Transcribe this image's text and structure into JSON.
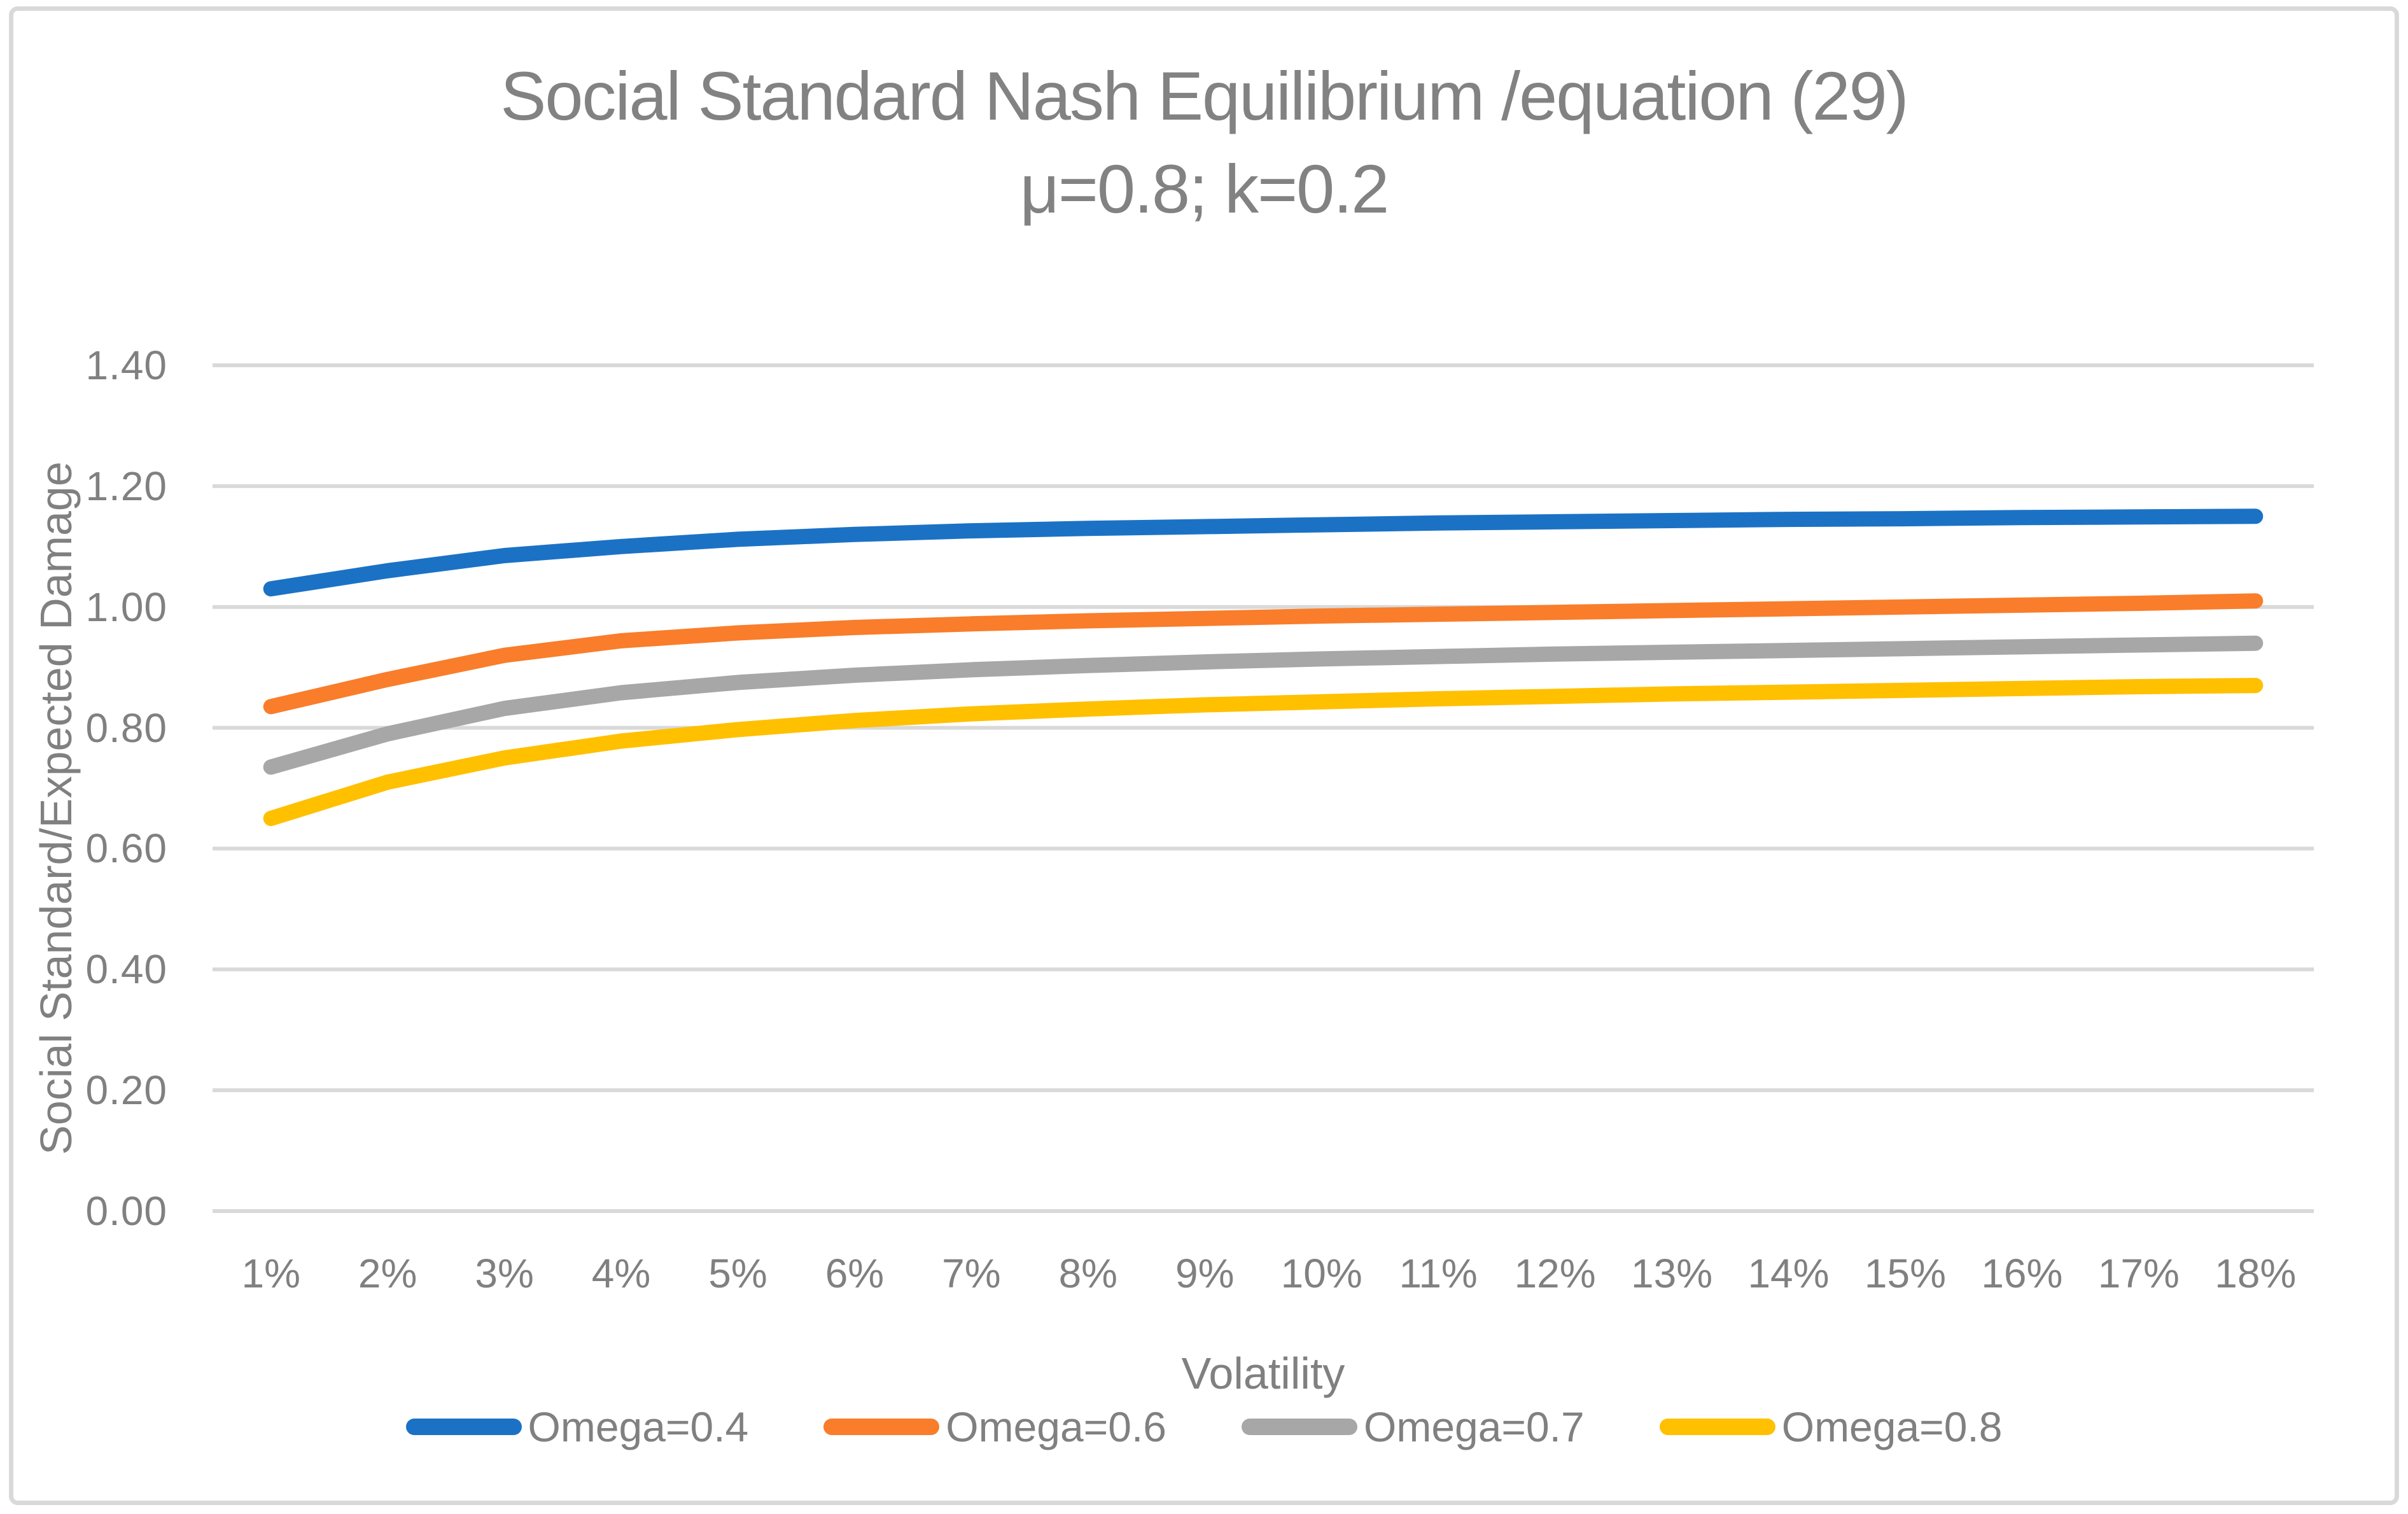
{
  "chart_data": {
    "type": "line",
    "title": "Social Standard Nash Equilibrium /equation (29)",
    "subtitle": "μ=0.8; k=0.2",
    "xlabel": "Volatility",
    "ylabel": "Social Standard/Expected Damage",
    "categories": [
      "1%",
      "2%",
      "3%",
      "4%",
      "5%",
      "6%",
      "7%",
      "8%",
      "9%",
      "10%",
      "11%",
      "12%",
      "13%",
      "14%",
      "15%",
      "16%",
      "17%",
      "18%"
    ],
    "y_ticks": [
      "0.00",
      "0.20",
      "0.40",
      "0.60",
      "0.80",
      "1.00",
      "1.20",
      "1.40"
    ],
    "ylim": [
      0,
      1.4
    ],
    "grid": true,
    "grid_color": "#D9D9D9",
    "text_color": "#808080",
    "legend_position": "bottom",
    "line_width": 24,
    "series": [
      {
        "name": "Omega=0.4",
        "color": "#1B72C5",
        "values": [
          1.03,
          1.06,
          1.085,
          1.1,
          1.112,
          1.12,
          1.126,
          1.13,
          1.133,
          1.136,
          1.139,
          1.141,
          1.143,
          1.145,
          1.146,
          1.148,
          1.149,
          1.15
        ]
      },
      {
        "name": "Omega=0.6",
        "color": "#F97D2B",
        "values": [
          0.835,
          0.88,
          0.92,
          0.944,
          0.957,
          0.966,
          0.972,
          0.977,
          0.981,
          0.985,
          0.988,
          0.991,
          0.994,
          0.997,
          1.0,
          1.003,
          1.006,
          1.01
        ]
      },
      {
        "name": "Omega=0.7",
        "color": "#A7A7A7",
        "values": [
          0.735,
          0.79,
          0.832,
          0.858,
          0.875,
          0.887,
          0.896,
          0.903,
          0.909,
          0.914,
          0.918,
          0.922,
          0.925,
          0.928,
          0.931,
          0.934,
          0.937,
          0.94
        ]
      },
      {
        "name": "Omega=0.8",
        "color": "#FFC000",
        "values": [
          0.65,
          0.71,
          0.75,
          0.778,
          0.797,
          0.812,
          0.823,
          0.831,
          0.838,
          0.843,
          0.848,
          0.852,
          0.856,
          0.859,
          0.862,
          0.865,
          0.868,
          0.87
        ]
      }
    ]
  },
  "window": {
    "background": "#FFFFFF",
    "border_color": "#D9D9D9"
  }
}
